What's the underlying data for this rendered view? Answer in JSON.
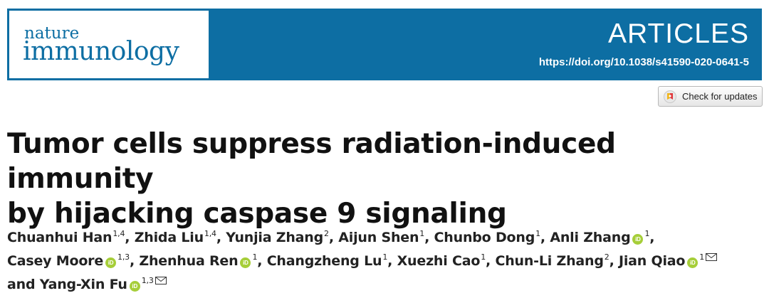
{
  "journal": {
    "logo_line1": "nature",
    "logo_line2": "immunology",
    "section": "ARTICLES",
    "doi": "https://doi.org/10.1038/s41590-020-0641-5"
  },
  "check_updates": {
    "label": "Check for updates"
  },
  "title": {
    "line1": "Tumor cells suppress radiation-induced immunity",
    "line2": "by hijacking caspase 9 signaling"
  },
  "orcid_label": "iD",
  "authors": [
    {
      "name": "Chuanhui Han",
      "aff": "1,4",
      "orcid": false,
      "email": false,
      "sep": ", "
    },
    {
      "name": "Zhida Liu",
      "aff": "1,4",
      "orcid": false,
      "email": false,
      "sep": ", "
    },
    {
      "name": "Yunjia Zhang",
      "aff": "2",
      "orcid": false,
      "email": false,
      "sep": ", "
    },
    {
      "name": "Aijun Shen",
      "aff": "1",
      "orcid": false,
      "email": false,
      "sep": ", "
    },
    {
      "name": "Chunbo Dong",
      "aff": "1",
      "orcid": false,
      "email": false,
      "sep": ", "
    },
    {
      "name": "Anli Zhang",
      "aff": "1",
      "orcid": true,
      "email": false,
      "sep": ", "
    },
    {
      "name": "Casey Moore",
      "aff": "1,3",
      "orcid": true,
      "email": false,
      "sep": ", "
    },
    {
      "name": "Zhenhua Ren",
      "aff": "1",
      "orcid": true,
      "email": false,
      "sep": ", "
    },
    {
      "name": "Changzheng Lu",
      "aff": "1",
      "orcid": false,
      "email": false,
      "sep": ", "
    },
    {
      "name": "Xuezhi Cao",
      "aff": "1",
      "orcid": false,
      "email": false,
      "sep": ", "
    },
    {
      "name": "Chun-Li Zhang",
      "aff": "2",
      "orcid": false,
      "email": false,
      "sep": ", "
    },
    {
      "name": "Jian Qiao",
      "aff": "1",
      "orcid": true,
      "email": true,
      "sep": ""
    },
    {
      "name": "and Yang-Xin Fu",
      "aff": "1,3",
      "orcid": true,
      "email": true,
      "sep": ""
    }
  ],
  "colors": {
    "header": "#0d6ea3",
    "orcid": "#a6ce39",
    "title_text": "#111111"
  }
}
